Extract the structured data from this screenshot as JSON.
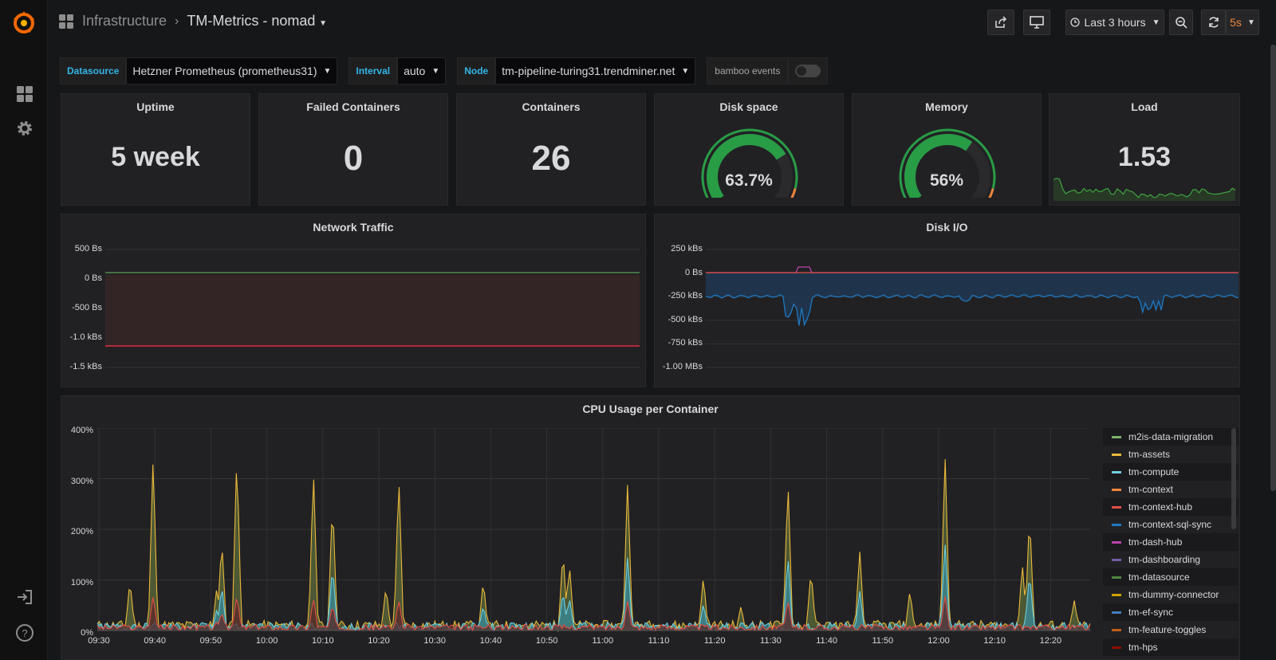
{
  "navbar": {
    "folder": "Infrastructure",
    "title": "TM-Metrics - nomad",
    "time_range": "Last 3 hours",
    "refresh": "5s"
  },
  "variables": [
    {
      "label": "Datasource",
      "value": "Hetzner Prometheus (prometheus31)"
    },
    {
      "label": "Interval",
      "value": "auto"
    },
    {
      "label": "Node",
      "value": "tm-pipeline-turing31.trendminer.net"
    }
  ],
  "toggle_var": {
    "label": "bamboo events",
    "on": false
  },
  "stats": {
    "uptime": {
      "title": "Uptime",
      "value": "5 week"
    },
    "failed": {
      "title": "Failed Containers",
      "value": "0"
    },
    "containers": {
      "title": "Containers",
      "value": "26"
    },
    "disk": {
      "title": "Disk space",
      "value": "63.7%",
      "fraction": 0.637
    },
    "memory": {
      "title": "Memory",
      "value": "56%",
      "fraction": 0.56
    },
    "load": {
      "title": "Load",
      "value": "1.53"
    }
  },
  "network": {
    "title": "Network Traffic",
    "yticks": [
      "500 Bs",
      "0 Bs",
      "-500 Bs",
      "-1.0 kBs",
      "-1.5 kBs"
    ]
  },
  "diskio": {
    "title": "Disk I/O",
    "yticks": [
      "250 kBs",
      "0 Bs",
      "-250 kBs",
      "-500 kBs",
      "-750 kBs",
      "-1.00 MBs"
    ]
  },
  "cpu": {
    "title": "CPU Usage per Container",
    "yticks": [
      "400%",
      "300%",
      "200%",
      "100%",
      "0%"
    ],
    "xticks": [
      "09:30",
      "09:40",
      "09:50",
      "10:00",
      "10:10",
      "10:20",
      "10:30",
      "10:40",
      "10:50",
      "11:00",
      "11:10",
      "11:20",
      "11:30",
      "11:40",
      "11:50",
      "12:00",
      "12:10",
      "12:20"
    ],
    "legend": [
      {
        "name": "m2is-data-migration",
        "color": "#7eb26d"
      },
      {
        "name": "tm-assets",
        "color": "#eab839"
      },
      {
        "name": "tm-compute",
        "color": "#6ed0e0"
      },
      {
        "name": "tm-context",
        "color": "#ef843c"
      },
      {
        "name": "tm-context-hub",
        "color": "#e24d42"
      },
      {
        "name": "tm-context-sql-sync",
        "color": "#1f78c1"
      },
      {
        "name": "tm-dash-hub",
        "color": "#ba43a9"
      },
      {
        "name": "tm-dashboarding",
        "color": "#705da0"
      },
      {
        "name": "tm-datasource",
        "color": "#508642"
      },
      {
        "name": "tm-dummy-connector",
        "color": "#cca300"
      },
      {
        "name": "tm-ef-sync",
        "color": "#447ebc"
      },
      {
        "name": "tm-feature-toggles",
        "color": "#c15c17"
      },
      {
        "name": "tm-hps",
        "color": "#890f02"
      }
    ]
  }
}
